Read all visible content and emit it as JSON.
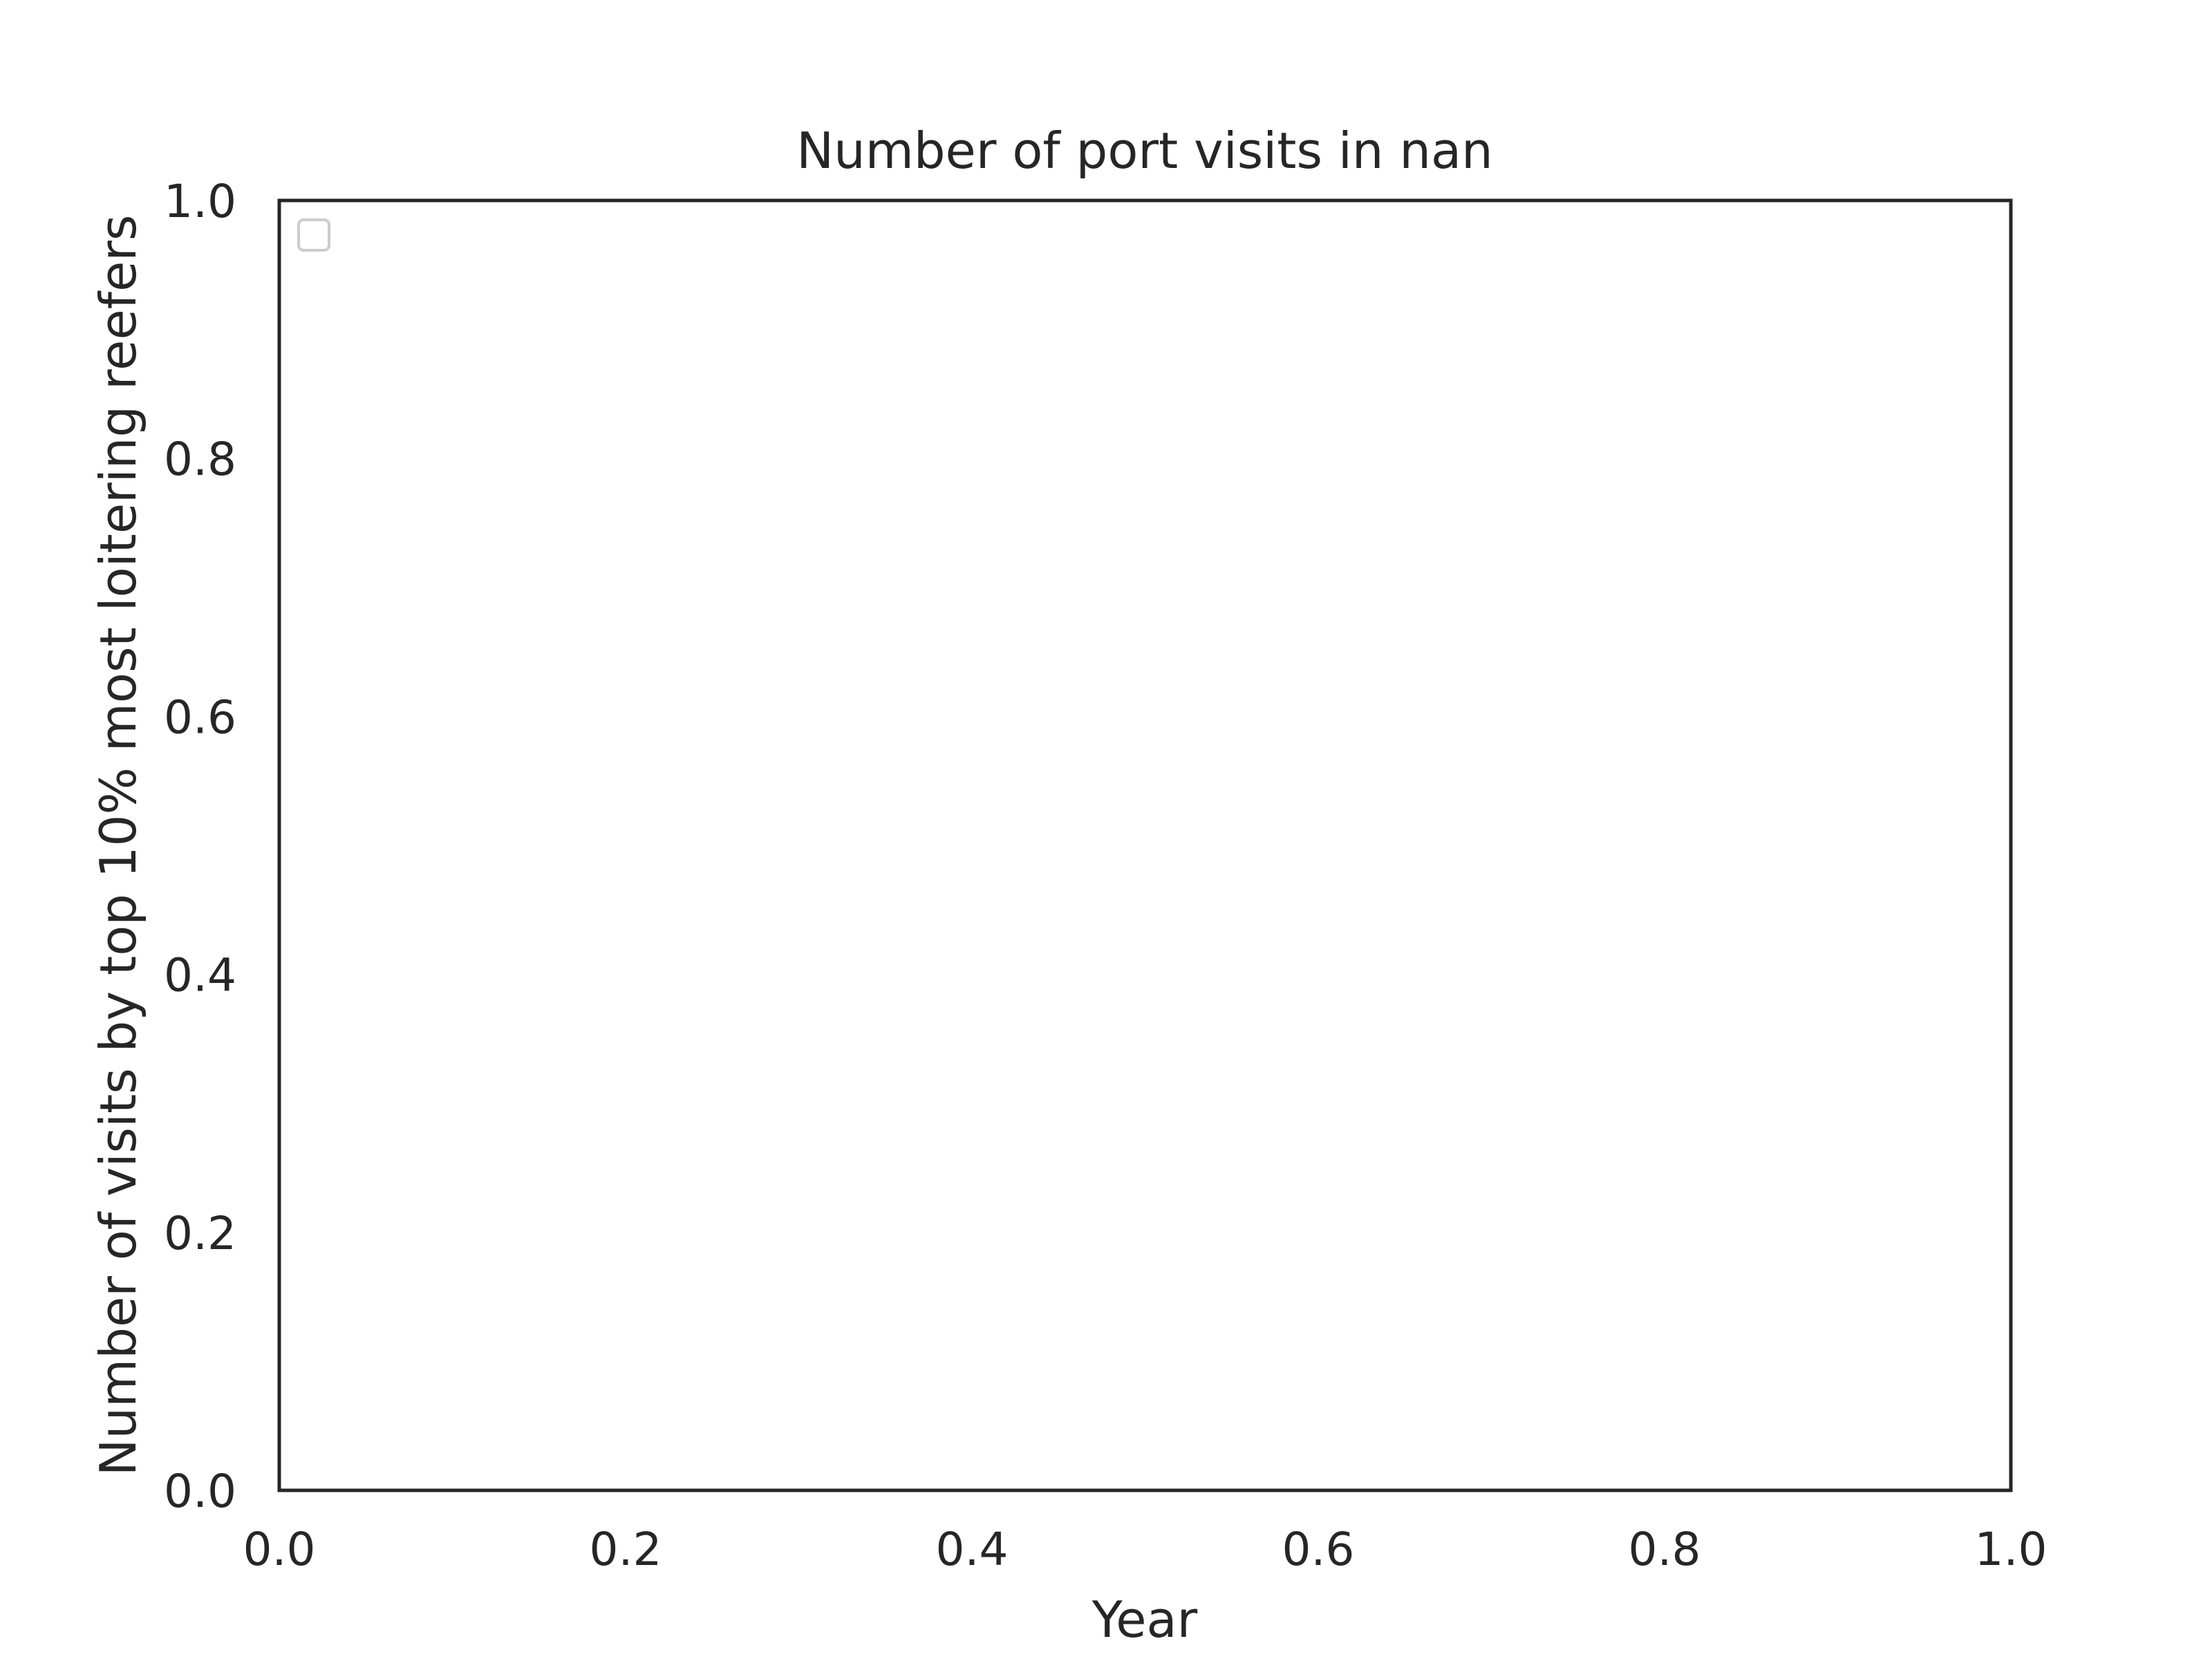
{
  "chart_data": {
    "type": "line",
    "title": "Number of port visits in nan",
    "xlabel": "Year",
    "ylabel": "Number of visits by top 10% most loitering reefers",
    "xlim": [
      0.0,
      1.0
    ],
    "ylim": [
      0.0,
      1.0
    ],
    "x_ticks": [
      "0.0",
      "0.2",
      "0.4",
      "0.6",
      "0.8",
      "1.0"
    ],
    "y_ticks": [
      "0.0",
      "0.2",
      "0.4",
      "0.6",
      "0.8",
      "1.0"
    ],
    "series": [],
    "grid": false,
    "legend": {
      "placement": "upper-left",
      "entries": []
    },
    "colors": {
      "axis": "#262626",
      "legend_border": "#cccccc",
      "background": "#ffffff"
    }
  }
}
